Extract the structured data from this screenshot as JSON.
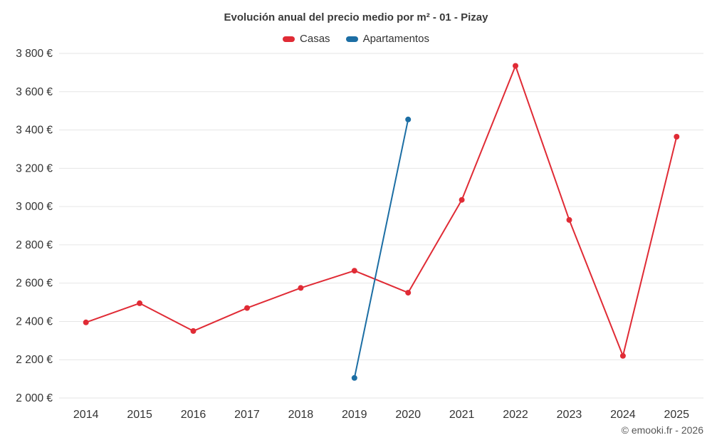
{
  "chart": {
    "title": "Evolución anual del precio medio por m² - 01 - Pizay",
    "footer": "© emooki.fr - 2026",
    "colors": {
      "casas": "#e02b35",
      "apartamentos": "#1c6ea4",
      "text": "#3a3a3a",
      "axis_text": "#333333",
      "grid": "#e6e6e6"
    }
  },
  "chart_data": {
    "type": "line",
    "title": "Evolución anual del precio medio por m² - 01 - Pizay",
    "categories": [
      "2014",
      "2015",
      "2016",
      "2017",
      "2018",
      "2019",
      "2020",
      "2021",
      "2022",
      "2023",
      "2024",
      "2025"
    ],
    "series": [
      {
        "name": "Casas",
        "color": "#e02b35",
        "values": [
          2395,
          2495,
          2350,
          2470,
          2575,
          2665,
          2550,
          3035,
          3735,
          2930,
          2220,
          3365
        ]
      },
      {
        "name": "Apartamentos",
        "color": "#1c6ea4",
        "values": [
          null,
          null,
          null,
          null,
          null,
          2105,
          3455,
          null,
          null,
          null,
          null,
          null
        ]
      }
    ],
    "ylim": [
      2000,
      3800
    ],
    "ytick_step": 200,
    "ytick_labels": [
      "2 000 €",
      "2 200 €",
      "2 400 €",
      "2 600 €",
      "2 800 €",
      "3 000 €",
      "3 200 €",
      "3 400 €",
      "3 600 €",
      "3 800 €"
    ],
    "xlabel": "",
    "ylabel": "",
    "grid": "horizontal",
    "legend_position": "top"
  }
}
